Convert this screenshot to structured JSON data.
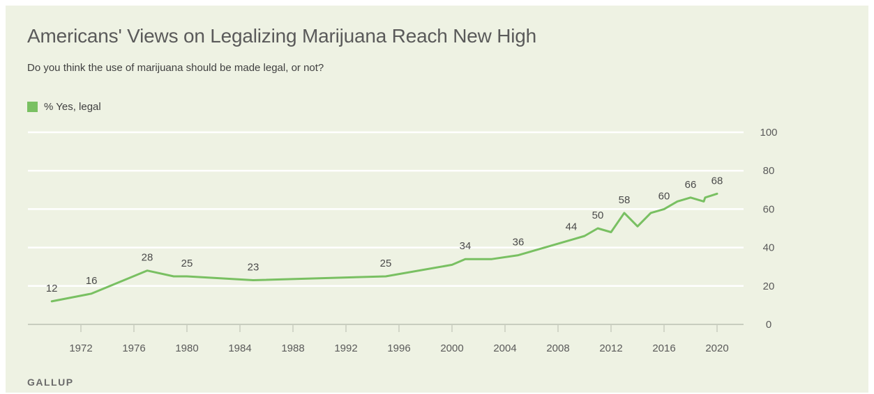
{
  "colors": {
    "background": "#eef2e3",
    "series": "#79c062",
    "grid": "#ffffff",
    "axis": "#c8cdbf"
  },
  "chart_data": {
    "type": "line",
    "title": "Americans' Views on Legalizing Marijuana Reach New High",
    "subtitle": "Do you think the use of marijuana should be made legal, or not?",
    "source": "GALLUP",
    "grid": true,
    "legend_position": "top-left",
    "xlim": [
      1968,
      2022
    ],
    "ylim": [
      0,
      100
    ],
    "x_ticks": [
      1972,
      1976,
      1980,
      1984,
      1988,
      1992,
      1996,
      2000,
      2004,
      2008,
      2012,
      2016,
      2020
    ],
    "y_ticks": [
      0,
      20,
      40,
      60,
      80,
      100
    ],
    "y_axis_side": "right",
    "series": [
      {
        "name": "% Yes, legal",
        "points": [
          [
            1969.8,
            12
          ],
          [
            1972.8,
            16
          ],
          [
            1977.0,
            28
          ],
          [
            1979.0,
            25
          ],
          [
            1980.0,
            25
          ],
          [
            1985.0,
            23
          ],
          [
            1995.0,
            25
          ],
          [
            2000.0,
            31
          ],
          [
            2001.0,
            34
          ],
          [
            2003.0,
            34
          ],
          [
            2005.0,
            36
          ],
          [
            2009.0,
            44
          ],
          [
            2010.0,
            46
          ],
          [
            2011.0,
            50
          ],
          [
            2012.0,
            48
          ],
          [
            2013.0,
            58
          ],
          [
            2014.0,
            51
          ],
          [
            2015.0,
            58
          ],
          [
            2016.0,
            60
          ],
          [
            2017.0,
            64
          ],
          [
            2018.0,
            66
          ],
          [
            2019.0,
            64
          ],
          [
            2019.1,
            66
          ],
          [
            2020.0,
            68
          ]
        ]
      }
    ],
    "data_labels": [
      {
        "x": 1969.8,
        "y": 12,
        "text": "12"
      },
      {
        "x": 1972.8,
        "y": 16,
        "text": "16"
      },
      {
        "x": 1977.0,
        "y": 28,
        "text": "28"
      },
      {
        "x": 1980.0,
        "y": 25,
        "text": "25"
      },
      {
        "x": 1985.0,
        "y": 23,
        "text": "23"
      },
      {
        "x": 1995.0,
        "y": 25,
        "text": "25"
      },
      {
        "x": 2001.0,
        "y": 34,
        "text": "34"
      },
      {
        "x": 2005.0,
        "y": 36,
        "text": "36"
      },
      {
        "x": 2009.0,
        "y": 44,
        "text": "44"
      },
      {
        "x": 2011.0,
        "y": 50,
        "text": "50"
      },
      {
        "x": 2013.0,
        "y": 58,
        "text": "58"
      },
      {
        "x": 2016.0,
        "y": 60,
        "text": "60"
      },
      {
        "x": 2018.0,
        "y": 66,
        "text": "66"
      },
      {
        "x": 2020.0,
        "y": 68,
        "text": "68"
      }
    ]
  }
}
